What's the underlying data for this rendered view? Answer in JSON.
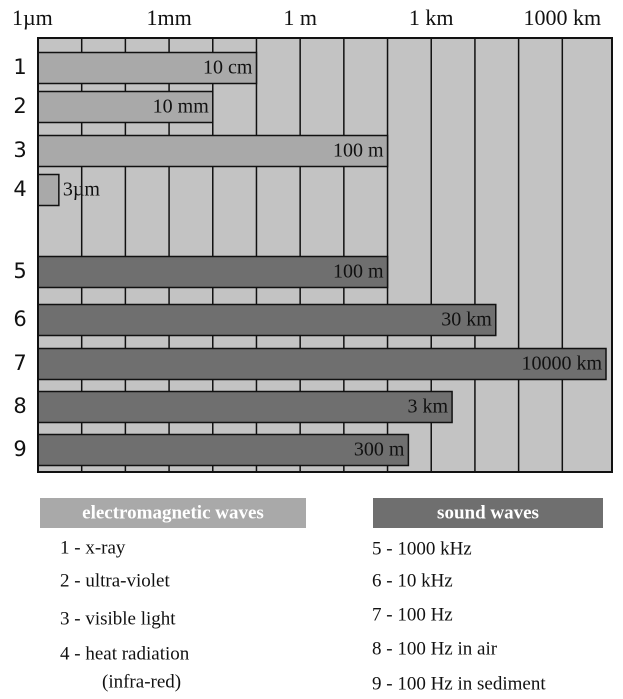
{
  "chart_data": {
    "type": "bar",
    "orientation": "horizontal",
    "x_scale": "log",
    "xlim": [
      1e-06,
      10000000
    ],
    "xticks": [
      {
        "value": 1e-06,
        "label": "1µm"
      },
      {
        "value": 0.001,
        "label": "1mm"
      },
      {
        "value": 1,
        "label": "1 m"
      },
      {
        "value": 1000,
        "label": "1 km"
      },
      {
        "value": 1000000,
        "label": "1000 km"
      }
    ],
    "xminor_ticks": [
      1e-05,
      0.0001,
      0.01,
      0.1,
      10,
      100,
      10000,
      100000
    ],
    "grid": true,
    "categories": [
      "1",
      "2",
      "3",
      "4",
      "5",
      "6",
      "7",
      "8",
      "9"
    ],
    "values": [
      0.1,
      0.01,
      100,
      3e-06,
      100,
      30000,
      10000000,
      3000,
      300
    ],
    "value_labels": [
      "10 cm",
      "10 mm",
      "100 m",
      "3µm",
      "100 m",
      "30 km",
      "10000 km",
      "3 km",
      "300 m"
    ],
    "colors": [
      "#a9a9a9",
      "#a9a9a9",
      "#a9a9a9",
      "#a9a9a9",
      "#6f6f6f",
      "#6f6f6f",
      "#6f6f6f",
      "#6f6f6f",
      "#6f6f6f"
    ],
    "background": "#c3c3c3",
    "legend_groups": [
      {
        "title": "electromagnetic waves",
        "color": "#a9a9a9",
        "items": [
          [
            "1 - x-ray"
          ],
          [
            "2 - ultra-violet"
          ],
          [
            "3 - visible light"
          ],
          [
            "4 - heat radiation",
            "(infra-red)"
          ]
        ]
      },
      {
        "title": "sound waves",
        "color": "#6f6f6f",
        "items": [
          [
            "5 - 1000 kHz"
          ],
          [
            "6 - 10 kHz"
          ],
          [
            "7 - 100 Hz"
          ],
          [
            "8 - 100 Hz in air"
          ],
          [
            "9 - 100 Hz in sediment"
          ]
        ]
      }
    ]
  }
}
